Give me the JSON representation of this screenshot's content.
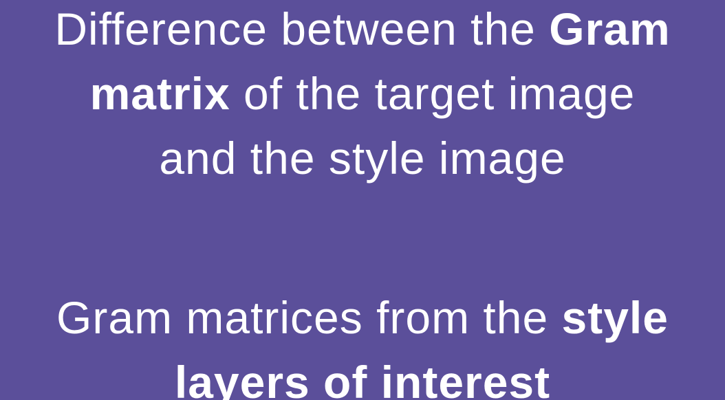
{
  "slide": {
    "background_color": "#5b4f9a",
    "text_color": "#ffffff",
    "block1": {
      "line1_normal": "Difference between the ",
      "line1_bold": "Gram",
      "line2_bold": "matrix",
      "line2_normal": " of the target image",
      "line3_normal": "and the style image"
    },
    "block2": {
      "line1_normal": "Gram matrices from the ",
      "line1_bold": "style",
      "line2_bold": "layers of interest"
    }
  }
}
